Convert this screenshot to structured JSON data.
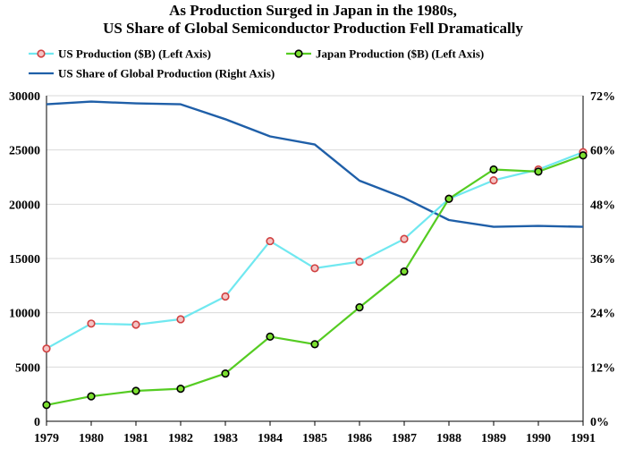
{
  "chart_data": {
    "type": "line",
    "title": "As Production Surged in Japan in the 1980s,",
    "subtitle": "US Share of  Global Semiconductor Production Fell Dramatically",
    "x": [
      "1979",
      "1980",
      "1981",
      "1982",
      "1983",
      "1984",
      "1985",
      "1986",
      "1987",
      "1988",
      "1989",
      "1990",
      "1991"
    ],
    "left_axis": {
      "min": 0,
      "max": 30000,
      "ticks": [
        "0",
        "5000",
        "10000",
        "15000",
        "20000",
        "25000",
        "30000"
      ]
    },
    "right_axis": {
      "min": 0,
      "max": 72,
      "ticks": [
        "0%",
        "12%",
        "24%",
        "36%",
        "48%",
        "60%",
        "72%"
      ]
    },
    "grid": true,
    "legend_position": "top",
    "series": [
      {
        "name": "US Production ($B) (Left Axis)",
        "axis": "left",
        "color": "#70e8f0",
        "marker_fill": "#f4c4c4",
        "marker_edge": "#d04040",
        "values": [
          6700,
          9000,
          8900,
          9400,
          11500,
          16600,
          14100,
          14700,
          16800,
          20500,
          22200,
          23200,
          24800
        ]
      },
      {
        "name": "Japan Production ($B) (Left Axis)",
        "axis": "left",
        "color": "#55cc22",
        "marker_fill": "#7ce030",
        "marker_edge": "#000000",
        "values": [
          1500,
          2300,
          2800,
          3000,
          4400,
          7800,
          7100,
          10500,
          13800,
          20500,
          23200,
          23000,
          24500
        ]
      },
      {
        "name": "US Share of Global Production (Right Axis)",
        "axis": "right",
        "color": "#1f5fa8",
        "values": [
          70.1,
          70.7,
          70.3,
          70.1,
          66.8,
          63,
          61.2,
          53.2,
          49.4,
          44.5,
          43,
          43.2,
          43
        ]
      }
    ]
  }
}
